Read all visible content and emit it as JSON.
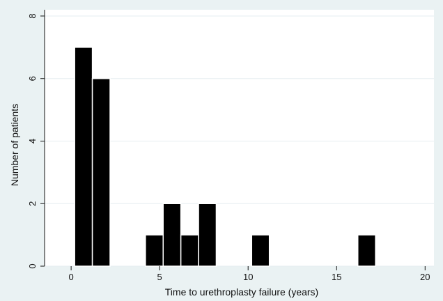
{
  "chart_data": {
    "type": "bar",
    "title": "",
    "xlabel": "Time to urethroplasty failure (years)",
    "ylabel": "Number of patients",
    "xlim": [
      -1.5,
      20.5
    ],
    "ylim": [
      0,
      8.2
    ],
    "x_ticks": [
      "0",
      "5",
      "10",
      "15",
      "20"
    ],
    "y_ticks": [
      "0",
      "2",
      "4",
      "6",
      "8"
    ],
    "grid": true,
    "bin_width": 1,
    "bars": [
      {
        "start": 0.2,
        "value": 7
      },
      {
        "start": 1.2,
        "value": 6
      },
      {
        "start": 4.2,
        "value": 1
      },
      {
        "start": 5.2,
        "value": 2
      },
      {
        "start": 6.2,
        "value": 1
      },
      {
        "start": 7.2,
        "value": 2
      },
      {
        "start": 10.2,
        "value": 1
      },
      {
        "start": 16.2,
        "value": 1
      }
    ],
    "colors": {
      "bar_fill": "#000000",
      "bar_stroke": "#ffffff",
      "plot_bg": "#ffffff",
      "figure_bg": "#eaf2f3",
      "grid": "#e6eef0"
    }
  }
}
